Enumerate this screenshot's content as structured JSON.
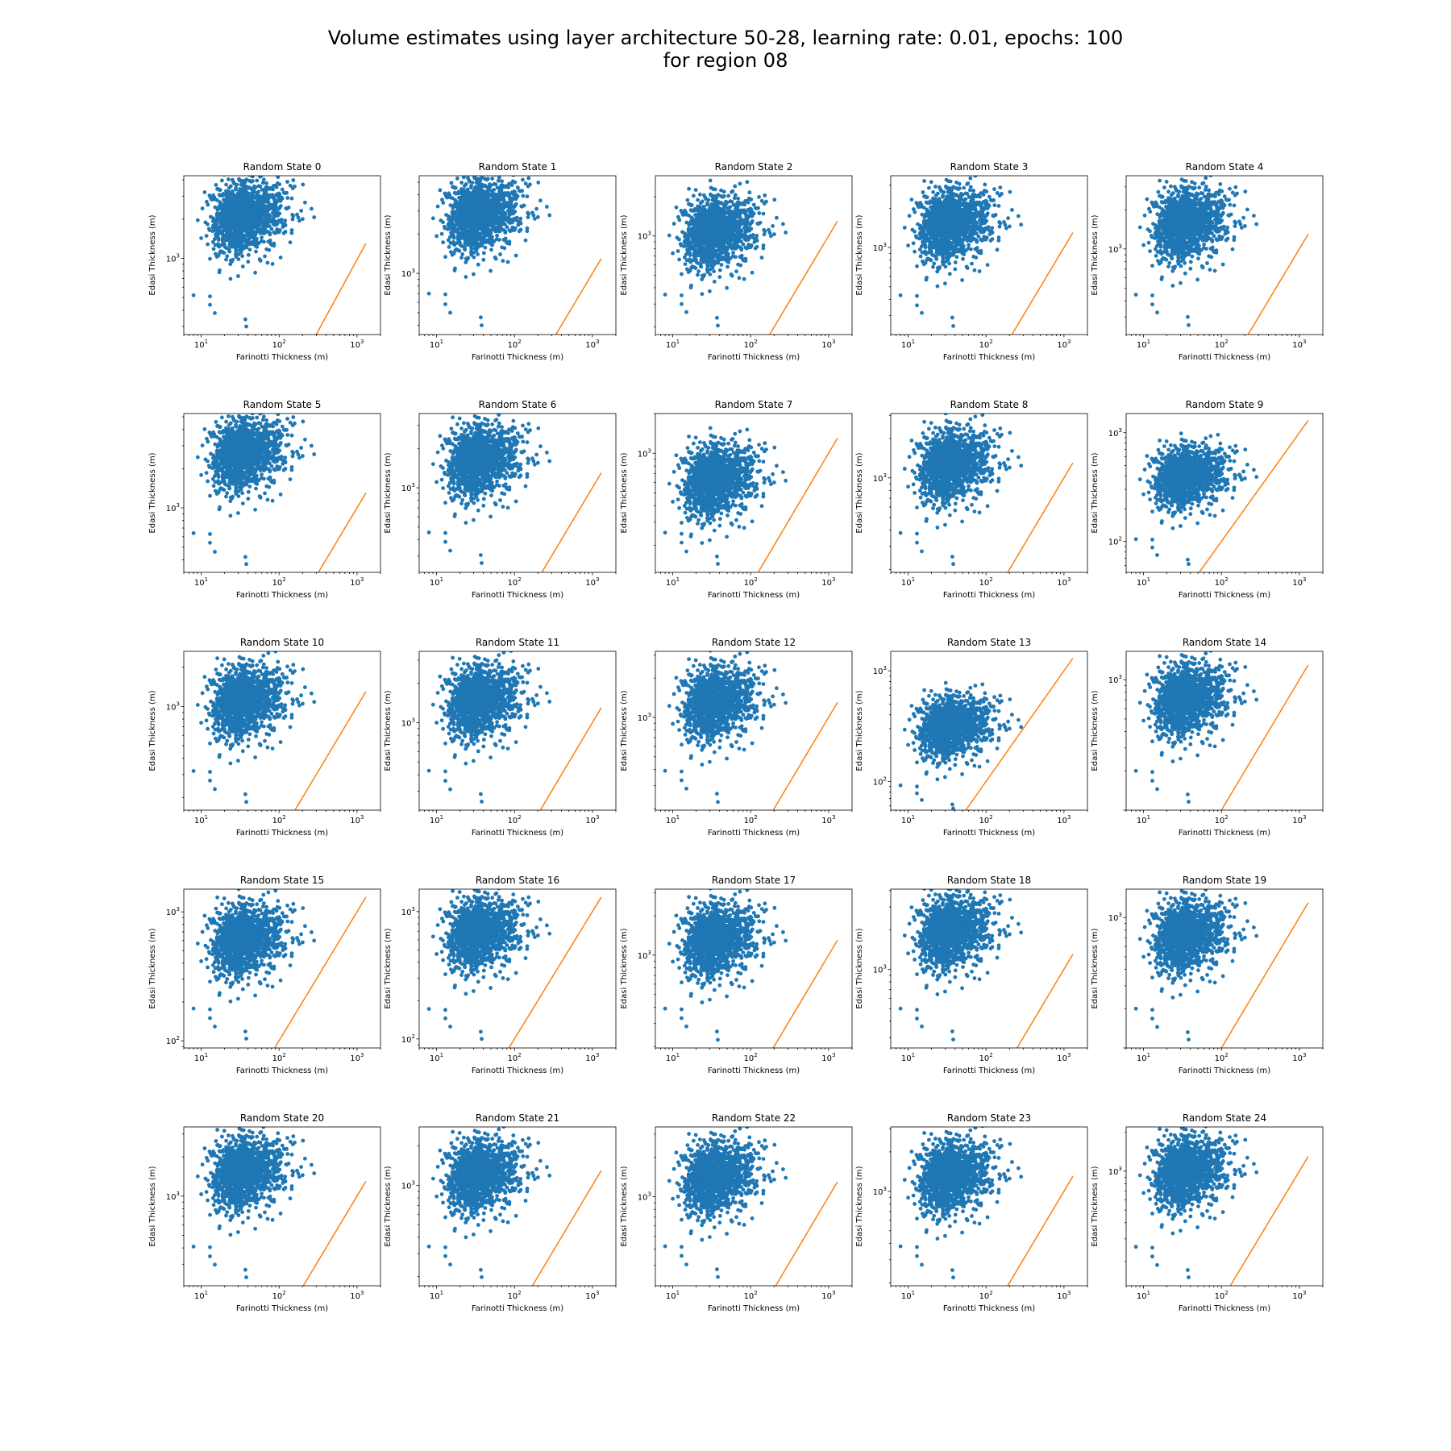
{
  "figure": {
    "title_line1": "Volume estimates using layer architecture 50-28, learning rate: 0.01, epochs: 100",
    "title_line2": "for region 08"
  },
  "colors": {
    "scatter": "#1f77b4",
    "line": "#ff7f0e",
    "axes": "#000000",
    "background": "#ffffff"
  },
  "chart_data": [
    {
      "type": "scatter",
      "title": "Random State 0",
      "xlabel": "Farinotti Thickness (m)",
      "ylabel": "Edasi Thickness (m)",
      "xscale": "log",
      "yscale": "log",
      "xlim": [
        6,
        2000
      ],
      "ylim": [
        260,
        4300
      ],
      "xticks": [
        10,
        100,
        1000
      ],
      "yticks": [
        1000
      ],
      "cloud_center": 2000,
      "outliers_y": [
        520,
        510,
        440,
        380,
        340,
        300
      ],
      "line": {
        "x": [
          300,
          1300
        ],
        "y": [
          260,
          1300
        ]
      }
    },
    {
      "type": "scatter",
      "title": "Random State 1",
      "xlabel": "Farinotti Thickness (m)",
      "ylabel": "Edasi Thickness (m)",
      "xscale": "log",
      "yscale": "log",
      "xlim": [
        6,
        2000
      ],
      "ylim": [
        340,
        5600
      ],
      "xticks": [
        10,
        100,
        1000
      ],
      "yticks": [
        1000
      ],
      "cloud_center": 2700,
      "outliers_y": [
        700,
        690,
        580,
        500,
        460,
        400
      ],
      "line": {
        "x": [
          340,
          1300
        ],
        "y": [
          340,
          1300
        ]
      }
    },
    {
      "type": "scatter",
      "title": "Random State 2",
      "xlabel": "Farinotti Thickness (m)",
      "ylabel": "Edasi Thickness (m)",
      "xscale": "log",
      "yscale": "log",
      "xlim": [
        6,
        2000
      ],
      "ylim": [
        175,
        2900
      ],
      "xticks": [
        10,
        100,
        1000
      ],
      "yticks": [
        1000
      ],
      "cloud_center": 1030,
      "outliers_y": [
        355,
        350,
        300,
        260,
        235,
        205
      ],
      "line": {
        "x": [
          175,
          1300
        ],
        "y": [
          175,
          1300
        ]
      }
    },
    {
      "type": "scatter",
      "title": "Random State 3",
      "xlabel": "Farinotti Thickness (m)",
      "ylabel": "Edasi Thickness (m)",
      "xscale": "log",
      "yscale": "log",
      "xlim": [
        6,
        2000
      ],
      "ylim": [
        215,
        3550
      ],
      "xticks": [
        10,
        100,
        1000
      ],
      "yticks": [
        1000
      ],
      "cloud_center": 1450,
      "outliers_y": [
        430,
        425,
        360,
        315,
        290,
        250
      ],
      "line": {
        "x": [
          215,
          1300
        ],
        "y": [
          215,
          1300
        ]
      }
    },
    {
      "type": "scatter",
      "title": "Random State 4",
      "xlabel": "Farinotti Thickness (m)",
      "ylabel": "Edasi Thickness (m)",
      "xscale": "log",
      "yscale": "log",
      "xlim": [
        6,
        2000
      ],
      "ylim": [
        220,
        3650
      ],
      "xticks": [
        10,
        100,
        1000
      ],
      "yticks": [
        1000
      ],
      "cloud_center": 1500,
      "outliers_y": [
        445,
        440,
        375,
        325,
        300,
        260
      ],
      "line": {
        "x": [
          220,
          1300
        ],
        "y": [
          220,
          1300
        ]
      }
    },
    {
      "type": "scatter",
      "title": "Random State 5",
      "xlabel": "Farinotti Thickness (m)",
      "ylabel": "Edasi Thickness (m)",
      "xscale": "log",
      "yscale": "log",
      "xlim": [
        6,
        2000
      ],
      "ylim": [
        320,
        5300
      ],
      "xticks": [
        10,
        100,
        1000
      ],
      "yticks": [
        1000
      ],
      "cloud_center": 2500,
      "outliers_y": [
        640,
        630,
        540,
        460,
        420,
        370
      ],
      "line": {
        "x": [
          320,
          1300
        ],
        "y": [
          320,
          1300
        ]
      }
    },
    {
      "type": "scatter",
      "title": "Random State 6",
      "xlabel": "Farinotti Thickness (m)",
      "ylabel": "Edasi Thickness (m)",
      "xscale": "log",
      "yscale": "log",
      "xlim": [
        6,
        2000
      ],
      "ylim": [
        225,
        3700
      ],
      "xticks": [
        10,
        100,
        1000
      ],
      "yticks": [
        1000
      ],
      "cloud_center": 1550,
      "outliers_y": [
        455,
        450,
        385,
        330,
        305,
        265
      ],
      "line": {
        "x": [
          225,
          1300
        ],
        "y": [
          225,
          1300
        ]
      }
    },
    {
      "type": "scatter",
      "title": "Random State 7",
      "xlabel": "Farinotti Thickness (m)",
      "ylabel": "Edasi Thickness (m)",
      "xscale": "log",
      "yscale": "log",
      "xlim": [
        6,
        2000
      ],
      "ylim": [
        125,
        2000
      ],
      "xticks": [
        10,
        100,
        1000
      ],
      "yticks": [
        1000
      ],
      "cloud_center": 600,
      "outliers_y": [
        250,
        245,
        210,
        180,
        165,
        145
      ],
      "line": {
        "x": [
          125,
          1300
        ],
        "y": [
          125,
          1300
        ]
      }
    },
    {
      "type": "scatter",
      "title": "Random State 8",
      "xlabel": "Farinotti Thickness (m)",
      "ylabel": "Edasi Thickness (m)",
      "xscale": "log",
      "yscale": "log",
      "xlim": [
        6,
        2000
      ],
      "ylim": [
        190,
        3100
      ],
      "xticks": [
        10,
        100,
        1000
      ],
      "yticks": [
        1000
      ],
      "cloud_center": 1200,
      "outliers_y": [
        380,
        375,
        320,
        275,
        250,
        220
      ],
      "line": {
        "x": [
          190,
          1300
        ],
        "y": [
          190,
          1300
        ]
      }
    },
    {
      "type": "scatter",
      "title": "Random State 9",
      "xlabel": "Farinotti Thickness (m)",
      "ylabel": "Edasi Thickness (m)",
      "xscale": "log",
      "yscale": "log",
      "xlim": [
        6,
        2000
      ],
      "ylim": [
        52,
        1500
      ],
      "xticks": [
        10,
        100,
        1000
      ],
      "yticks": [
        100,
        1000
      ],
      "cloud_center": 380,
      "outliers_y": [
        105,
        104,
        88,
        75,
        68,
        62
      ],
      "line": {
        "x": [
          52,
          1300
        ],
        "y": [
          52,
          1300
        ]
      }
    },
    {
      "type": "scatter",
      "title": "Random State 10",
      "xlabel": "Farinotti Thickness (m)",
      "ylabel": "Edasi Thickness (m)",
      "xscale": "log",
      "yscale": "log",
      "xlim": [
        6,
        2000
      ],
      "ylim": [
        160,
        2650
      ],
      "xticks": [
        10,
        100,
        1000
      ],
      "yticks": [
        1000
      ],
      "cloud_center": 1050,
      "outliers_y": [
        320,
        315,
        270,
        232,
        212,
        185
      ],
      "line": {
        "x": [
          160,
          1300
        ],
        "y": [
          160,
          1300
        ]
      }
    },
    {
      "type": "scatter",
      "title": "Random State 11",
      "xlabel": "Farinotti Thickness (m)",
      "ylabel": "Edasi Thickness (m)",
      "xscale": "log",
      "yscale": "log",
      "xlim": [
        6,
        2000
      ],
      "ylim": [
        215,
        3500
      ],
      "xticks": [
        10,
        100,
        1000
      ],
      "yticks": [
        1000
      ],
      "cloud_center": 1400,
      "outliers_y": [
        430,
        425,
        360,
        310,
        285,
        250
      ],
      "line": {
        "x": [
          215,
          1300
        ],
        "y": [
          215,
          1300
        ]
      }
    },
    {
      "type": "scatter",
      "title": "Random State 12",
      "xlabel": "Farinotti Thickness (m)",
      "ylabel": "Edasi Thickness (m)",
      "xscale": "log",
      "yscale": "log",
      "xlim": [
        6,
        2000
      ],
      "ylim": [
        195,
        3200
      ],
      "xticks": [
        10,
        100,
        1000
      ],
      "yticks": [
        1000
      ],
      "cloud_center": 1250,
      "outliers_y": [
        390,
        385,
        330,
        285,
        260,
        225
      ],
      "line": {
        "x": [
          195,
          1300
        ],
        "y": [
          195,
          1300
        ]
      }
    },
    {
      "type": "scatter",
      "title": "Random State 13",
      "xlabel": "Farinotti Thickness (m)",
      "ylabel": "Edasi Thickness (m)",
      "xscale": "log",
      "yscale": "log",
      "xlim": [
        6,
        2000
      ],
      "ylim": [
        55,
        1500
      ],
      "xticks": [
        10,
        100,
        1000
      ],
      "yticks": [
        100,
        1000
      ],
      "cloud_center": 300,
      "outliers_y": [
        92,
        90,
        78,
        68,
        62,
        57
      ],
      "line": {
        "x": [
          55,
          1300
        ],
        "y": [
          55,
          1300
        ]
      }
    },
    {
      "type": "scatter",
      "title": "Random State 14",
      "xlabel": "Farinotti Thickness (m)",
      "ylabel": "Edasi Thickness (m)",
      "xscale": "log",
      "yscale": "log",
      "xlim": [
        6,
        2000
      ],
      "ylim": [
        100,
        1650
      ],
      "xticks": [
        10,
        100,
        1000
      ],
      "yticks": [
        1000
      ],
      "cloud_center": 680,
      "outliers_y": [
        200,
        196,
        168,
        145,
        132,
        116
      ],
      "line": {
        "x": [
          100,
          1300
        ],
        "y": [
          100,
          1300
        ]
      }
    },
    {
      "type": "scatter",
      "title": "Random State 15",
      "xlabel": "Farinotti Thickness (m)",
      "ylabel": "Edasi Thickness (m)",
      "xscale": "log",
      "yscale": "log",
      "xlim": [
        6,
        2000
      ],
      "ylim": [
        88,
        1500
      ],
      "xticks": [
        10,
        100,
        1000
      ],
      "yticks": [
        100,
        1000
      ],
      "cloud_center": 580,
      "outliers_y": [
        178,
        175,
        150,
        129,
        118,
        104
      ],
      "line": {
        "x": [
          88,
          1300
        ],
        "y": [
          88,
          1300
        ]
      }
    },
    {
      "type": "scatter",
      "title": "Random State 16",
      "xlabel": "Farinotti Thickness (m)",
      "ylabel": "Edasi Thickness (m)",
      "xscale": "log",
      "yscale": "log",
      "xlim": [
        6,
        2000
      ],
      "ylim": [
        85,
        1500
      ],
      "xticks": [
        10,
        100,
        1000
      ],
      "yticks": [
        100,
        1000
      ],
      "cloud_center": 650,
      "outliers_y": [
        172,
        169,
        145,
        125,
        114,
        100
      ],
      "line": {
        "x": [
          85,
          1300
        ],
        "y": [
          85,
          1300
        ]
      }
    },
    {
      "type": "scatter",
      "title": "Random State 17",
      "xlabel": "Farinotti Thickness (m)",
      "ylabel": "Edasi Thickness (m)",
      "xscale": "log",
      "yscale": "log",
      "xlim": [
        6,
        2000
      ],
      "ylim": [
        195,
        3200
      ],
      "xticks": [
        10,
        100,
        1000
      ],
      "yticks": [
        1000
      ],
      "cloud_center": 1250,
      "outliers_y": [
        390,
        385,
        330,
        285,
        260,
        225
      ],
      "line": {
        "x": [
          195,
          1300
        ],
        "y": [
          195,
          1300
        ]
      }
    },
    {
      "type": "scatter",
      "title": "Random State 18",
      "xlabel": "Farinotti Thickness (m)",
      "ylabel": "Edasi Thickness (m)",
      "xscale": "log",
      "yscale": "log",
      "xlim": [
        6,
        2000
      ],
      "ylim": [
        250,
        4100
      ],
      "xticks": [
        10,
        100,
        1000
      ],
      "yticks": [
        1000
      ],
      "cloud_center": 1850,
      "outliers_y": [
        500,
        490,
        420,
        365,
        335,
        290
      ],
      "line": {
        "x": [
          250,
          1300
        ],
        "y": [
          250,
          1300
        ]
      }
    },
    {
      "type": "scatter",
      "title": "Random State 19",
      "xlabel": "Farinotti Thickness (m)",
      "ylabel": "Edasi Thickness (m)",
      "xscale": "log",
      "yscale": "log",
      "xlim": [
        6,
        2000
      ],
      "ylim": [
        100,
        1650
      ],
      "xticks": [
        10,
        100,
        1000
      ],
      "yticks": [
        1000
      ],
      "cloud_center": 700,
      "outliers_y": [
        200,
        196,
        168,
        145,
        132,
        116
      ],
      "line": {
        "x": [
          100,
          1300
        ],
        "y": [
          100,
          1300
        ]
      }
    },
    {
      "type": "scatter",
      "title": "Random State 20",
      "xlabel": "Farinotti Thickness (m)",
      "ylabel": "Edasi Thickness (m)",
      "xscale": "log",
      "yscale": "log",
      "xlim": [
        6,
        2000
      ],
      "ylim": [
        205,
        3400
      ],
      "xticks": [
        10,
        100,
        1000
      ],
      "yticks": [
        1000
      ],
      "cloud_center": 1450,
      "outliers_y": [
        410,
        405,
        345,
        298,
        272,
        238
      ],
      "line": {
        "x": [
          205,
          1300
        ],
        "y": [
          205,
          1300
        ]
      }
    },
    {
      "type": "scatter",
      "title": "Random State 21",
      "xlabel": "Farinotti Thickness (m)",
      "ylabel": "Edasi Thickness (m)",
      "xscale": "log",
      "yscale": "log",
      "xlim": [
        6,
        2000
      ],
      "ylim": [
        170,
        2800
      ],
      "xticks": [
        10,
        100,
        1000
      ],
      "yticks": [
        1000
      ],
      "cloud_center": 1150,
      "outliers_y": [
        340,
        335,
        287,
        247,
        225,
        198
      ],
      "line": {
        "x": [
          170,
          1300
        ],
        "y": [
          170,
          1300
        ]
      }
    },
    {
      "type": "scatter",
      "title": "Random State 22",
      "xlabel": "Farinotti Thickness (m)",
      "ylabel": "Edasi Thickness (m)",
      "xscale": "log",
      "yscale": "log",
      "xlim": [
        6,
        2000
      ],
      "ylim": [
        210,
        3400
      ],
      "xticks": [
        10,
        100,
        1000
      ],
      "yticks": [
        1000
      ],
      "cloud_center": 1350,
      "outliers_y": [
        420,
        415,
        355,
        305,
        280,
        245
      ],
      "line": {
        "x": [
          210,
          1300
        ],
        "y": [
          210,
          1300
        ]
      }
    },
    {
      "type": "scatter",
      "title": "Random State 23",
      "xlabel": "Farinotti Thickness (m)",
      "ylabel": "Edasi Thickness (m)",
      "xscale": "log",
      "yscale": "log",
      "xlim": [
        6,
        2000
      ],
      "ylim": [
        190,
        3100
      ],
      "xticks": [
        10,
        100,
        1000
      ],
      "yticks": [
        1000
      ],
      "cloud_center": 1250,
      "outliers_y": [
        380,
        375,
        320,
        275,
        250,
        220
      ],
      "line": {
        "x": [
          190,
          1300
        ],
        "y": [
          190,
          1300
        ]
      }
    },
    {
      "type": "scatter",
      "title": "Random State 24",
      "xlabel": "Farinotti Thickness (m)",
      "ylabel": "Edasi Thickness (m)",
      "xscale": "log",
      "yscale": "log",
      "xlim": [
        6,
        2000
      ],
      "ylim": [
        130,
        2200
      ],
      "xticks": [
        10,
        100,
        1000
      ],
      "yticks": [
        1000
      ],
      "cloud_center": 950,
      "outliers_y": [
        260,
        256,
        219,
        188,
        172,
        151
      ],
      "line": {
        "x": [
          130,
          1300
        ],
        "y": [
          130,
          1300
        ]
      }
    }
  ]
}
